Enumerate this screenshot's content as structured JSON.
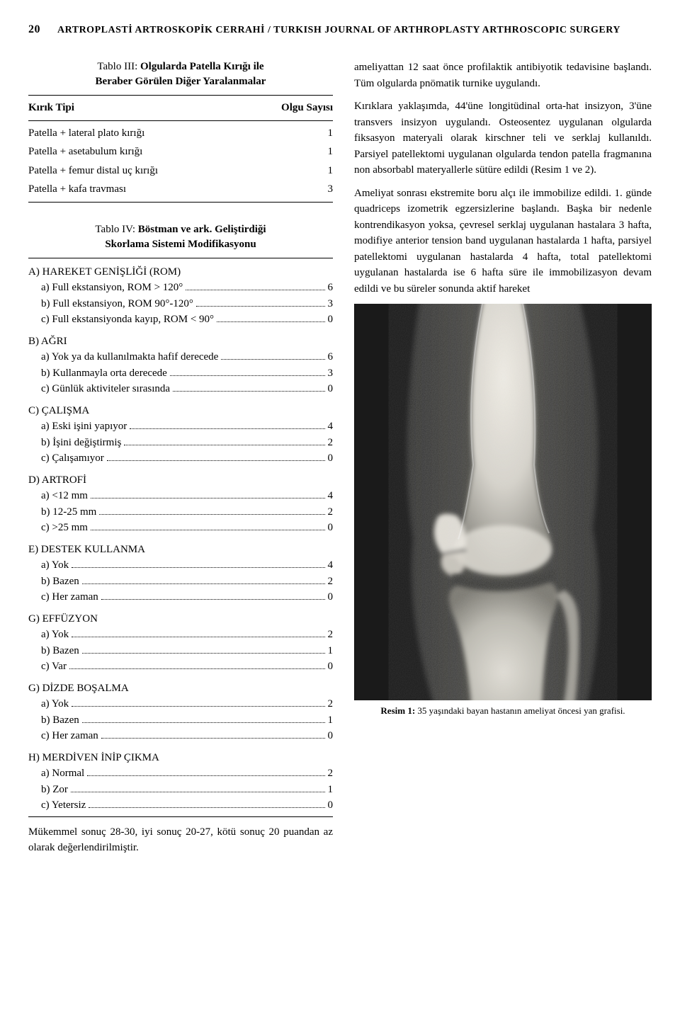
{
  "header": {
    "page_number": "20",
    "journal": "ARTROPLASTİ ARTROSKOPİK CERRAHİ / TURKISH JOURNAL OF ARTHROPLASTY ARTHROSCOPIC SURGERY"
  },
  "tablo3": {
    "label": "Tablo III:",
    "title_line1": "Olgularda Patella Kırığı ile",
    "title_line2": "Beraber Görülen Diğer Yaralanmalar",
    "head_left": "Kırık Tipi",
    "head_right": "Olgu Sayısı",
    "rows": [
      {
        "label": "Patella + lateral plato kırığı",
        "count": "1"
      },
      {
        "label": "Patella + asetabulum kırığı",
        "count": "1"
      },
      {
        "label": "Patella + femur distal uç kırığı",
        "count": "1"
      },
      {
        "label": "Patella + kafa travması",
        "count": "3"
      }
    ]
  },
  "tablo4": {
    "label": "Tablo IV:",
    "title_line1": "Böstman ve ark. Geliştirdiği",
    "title_line2": "Skorlama Sistemi Modifikasyonu",
    "sections": [
      {
        "head": "A) HAREKET GENİŞLİĞİ (ROM)",
        "items": [
          {
            "text": "a) Full ekstansiyon, ROM > 120°",
            "val": "6"
          },
          {
            "text": "b) Full ekstansiyon, ROM 90°-120°",
            "val": "3"
          },
          {
            "text": "c) Full ekstansiyonda kayıp, ROM < 90°",
            "val": "0"
          }
        ]
      },
      {
        "head": "B) AĞRI",
        "items": [
          {
            "text": "a) Yok ya da kullanılmakta hafif derecede",
            "val": "6"
          },
          {
            "text": "b) Kullanmayla orta derecede",
            "val": "3"
          },
          {
            "text": "c) Günlük aktiviteler sırasında",
            "val": "0"
          }
        ]
      },
      {
        "head": "C) ÇALIŞMA",
        "items": [
          {
            "text": "a) Eski işini yapıyor",
            "val": "4"
          },
          {
            "text": "b) İşini değiştirmiş",
            "val": "2"
          },
          {
            "text": "c) Çalışamıyor",
            "val": "0"
          }
        ]
      },
      {
        "head": "D) ARTROFİ",
        "items": [
          {
            "text": "a) <12 mm",
            "val": "4"
          },
          {
            "text": "b) 12-25 mm",
            "val": "2"
          },
          {
            "text": "c) >25 mm",
            "val": "0"
          }
        ]
      },
      {
        "head": "E) DESTEK KULLANMA",
        "items": [
          {
            "text": "a) Yok",
            "val": "4"
          },
          {
            "text": "b) Bazen",
            "val": "2"
          },
          {
            "text": "c) Her zaman",
            "val": "0"
          }
        ]
      },
      {
        "head": "G) EFFÜZYON",
        "items": [
          {
            "text": "a) Yok",
            "val": "2"
          },
          {
            "text": "b) Bazen",
            "val": "1"
          },
          {
            "text": "c) Var",
            "val": "0"
          }
        ]
      },
      {
        "head": "G) DİZDE BOŞALMA",
        "items": [
          {
            "text": "a) Yok",
            "val": "2"
          },
          {
            "text": "b) Bazen",
            "val": "1"
          },
          {
            "text": "c) Her zaman",
            "val": "0"
          }
        ]
      },
      {
        "head": "H) MERDİVEN İNİP ÇIKMA",
        "items": [
          {
            "text": "a) Normal",
            "val": "2"
          },
          {
            "text": "b) Zor",
            "val": "1"
          },
          {
            "text": "c) Yetersiz",
            "val": "0"
          }
        ]
      }
    ],
    "summary": "Mükemmel sonuç 28-30, iyi sonuç 20-27, kötü sonuç 20 puandan az olarak değerlendirilmiştir."
  },
  "right": {
    "para1": "ameliyattan 12 saat önce profilaktik antibiyotik tedavisine başlandı. Tüm olgularda pnömatik turnike uygulandı.",
    "para2": "Kırıklara yaklaşımda, 44'üne longitüdinal orta-hat insizyon, 3'üne transvers insizyon uygulandı. Osteosentez uygulanan olgularda fiksasyon materyali olarak kirschner teli ve serklaj kullanıldı. Parsiyel patellektomi uygulanan olgularda tendon patella fragmanına non absorbabl materyallerle sütüre edildi (Resim 1 ve 2).",
    "para3": "Ameliyat sonrası ekstremite boru alçı ile immobilize edildi. 1. günde quadriceps izometrik egzersizlerine başlandı. Başka bir nedenle kontrendikasyon yoksa, çevresel serklaj uygulanan hastalara 3 hafta, modifiye anterior tension band uygulanan hastalarda 1 hafta, parsiyel patellektomi uygulanan hastalarda 4 hafta, total patellektomi uygulanan hastalarda ise 6 hafta süre ile immobilizasyon devam edildi ve bu süreler sonunda aktif hareket",
    "caption_label": "Resim 1:",
    "caption_text": "35 yaşındaki bayan hastanın ameliyat öncesi yan grafisi."
  },
  "xray": {
    "bg": "#1e1e1e",
    "bone_light": "#e8e6e0",
    "bone_mid": "#c2c0ba",
    "bone_dark": "#888680",
    "soft": "#5a5a58"
  }
}
